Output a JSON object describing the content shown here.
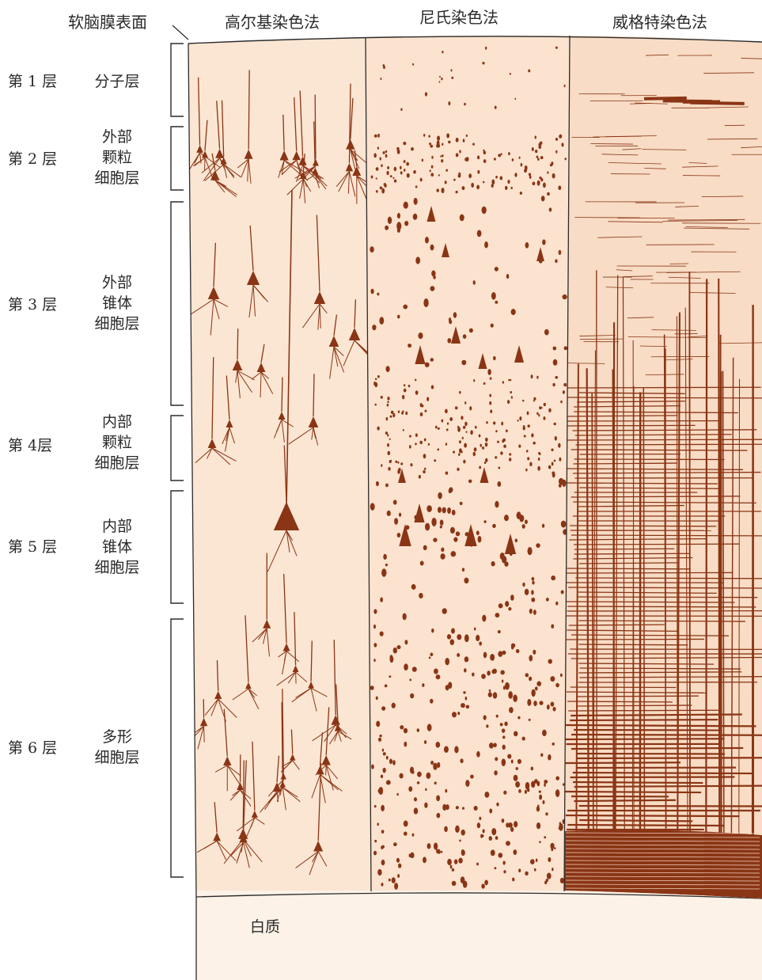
{
  "header": {
    "surface_label": "软脑膜表面",
    "stains": [
      "高尔基染色法",
      "尼氏染色法",
      "威格特染色法"
    ]
  },
  "layers": [
    {
      "num": "第 1 层",
      "name": [
        "分子层"
      ]
    },
    {
      "num": "第 2 层",
      "name": [
        "外部",
        "颗粒",
        "细胞层"
      ]
    },
    {
      "num": "第 3 层",
      "name": [
        "外部",
        "锥体",
        "细胞层"
      ]
    },
    {
      "num": "第 4层",
      "name": [
        "内部",
        "颗粒",
        "细胞层"
      ]
    },
    {
      "num": "第 5 层",
      "name": [
        "内部",
        "锥体",
        "细胞层"
      ]
    },
    {
      "num": "第 6 层",
      "name": [
        "多形",
        "细胞层"
      ]
    }
  ],
  "white_matter_label": "白质",
  "colors": {
    "tissue": "#fbe6d3",
    "white_matter": "#fcf2e7",
    "stain": "#8a3515",
    "outline": "#2b2b2b"
  }
}
